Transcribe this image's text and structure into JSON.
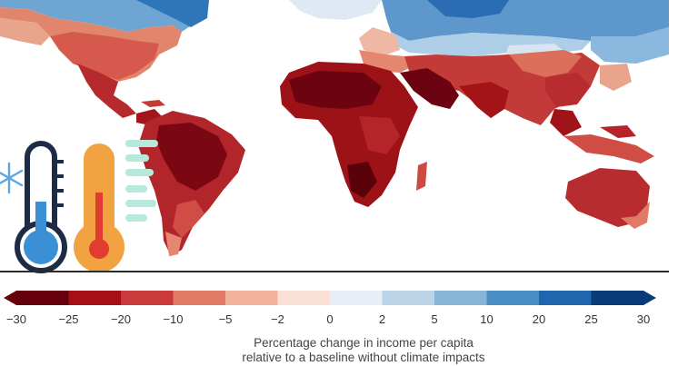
{
  "legend": {
    "ticks": [
      "−30",
      "−25",
      "−20",
      "−10",
      "−5",
      "−2",
      "0",
      "2",
      "5",
      "10",
      "20",
      "25",
      "30"
    ],
    "colors": [
      "#67000d",
      "#a50f15",
      "#cb3a3a",
      "#e07a64",
      "#f2b19b",
      "#fbe1d5",
      "#e7eef5",
      "#bcd4e8",
      "#86b5d8",
      "#4a8ec6",
      "#1f67ac",
      "#0a3b79"
    ],
    "caption_line1": "Percentage change in income per capita",
    "caption_line2": "relative to a baseline without climate impacts"
  },
  "colors": {
    "ocean": "#ffffff",
    "deep_red": "#8b0a14",
    "red": "#b3232a",
    "mid_red": "#cf4a42",
    "light_red": "#e48670",
    "pale": "#f4c9b8",
    "light_blue": "#c3d9ec",
    "mid_blue": "#7eaed6",
    "blue": "#3a7dbd",
    "thermo_cold": "#3b8fd4",
    "thermo_hot": "#f2a341",
    "thermo_fill_hot": "#e23b2f",
    "snow": "#5aa7e0",
    "heat_lines": "#b6e8dc"
  },
  "icons": [
    "snowflake-icon",
    "cold-thermometer-icon",
    "hot-thermometer-icon",
    "heat-waves-icon"
  ]
}
